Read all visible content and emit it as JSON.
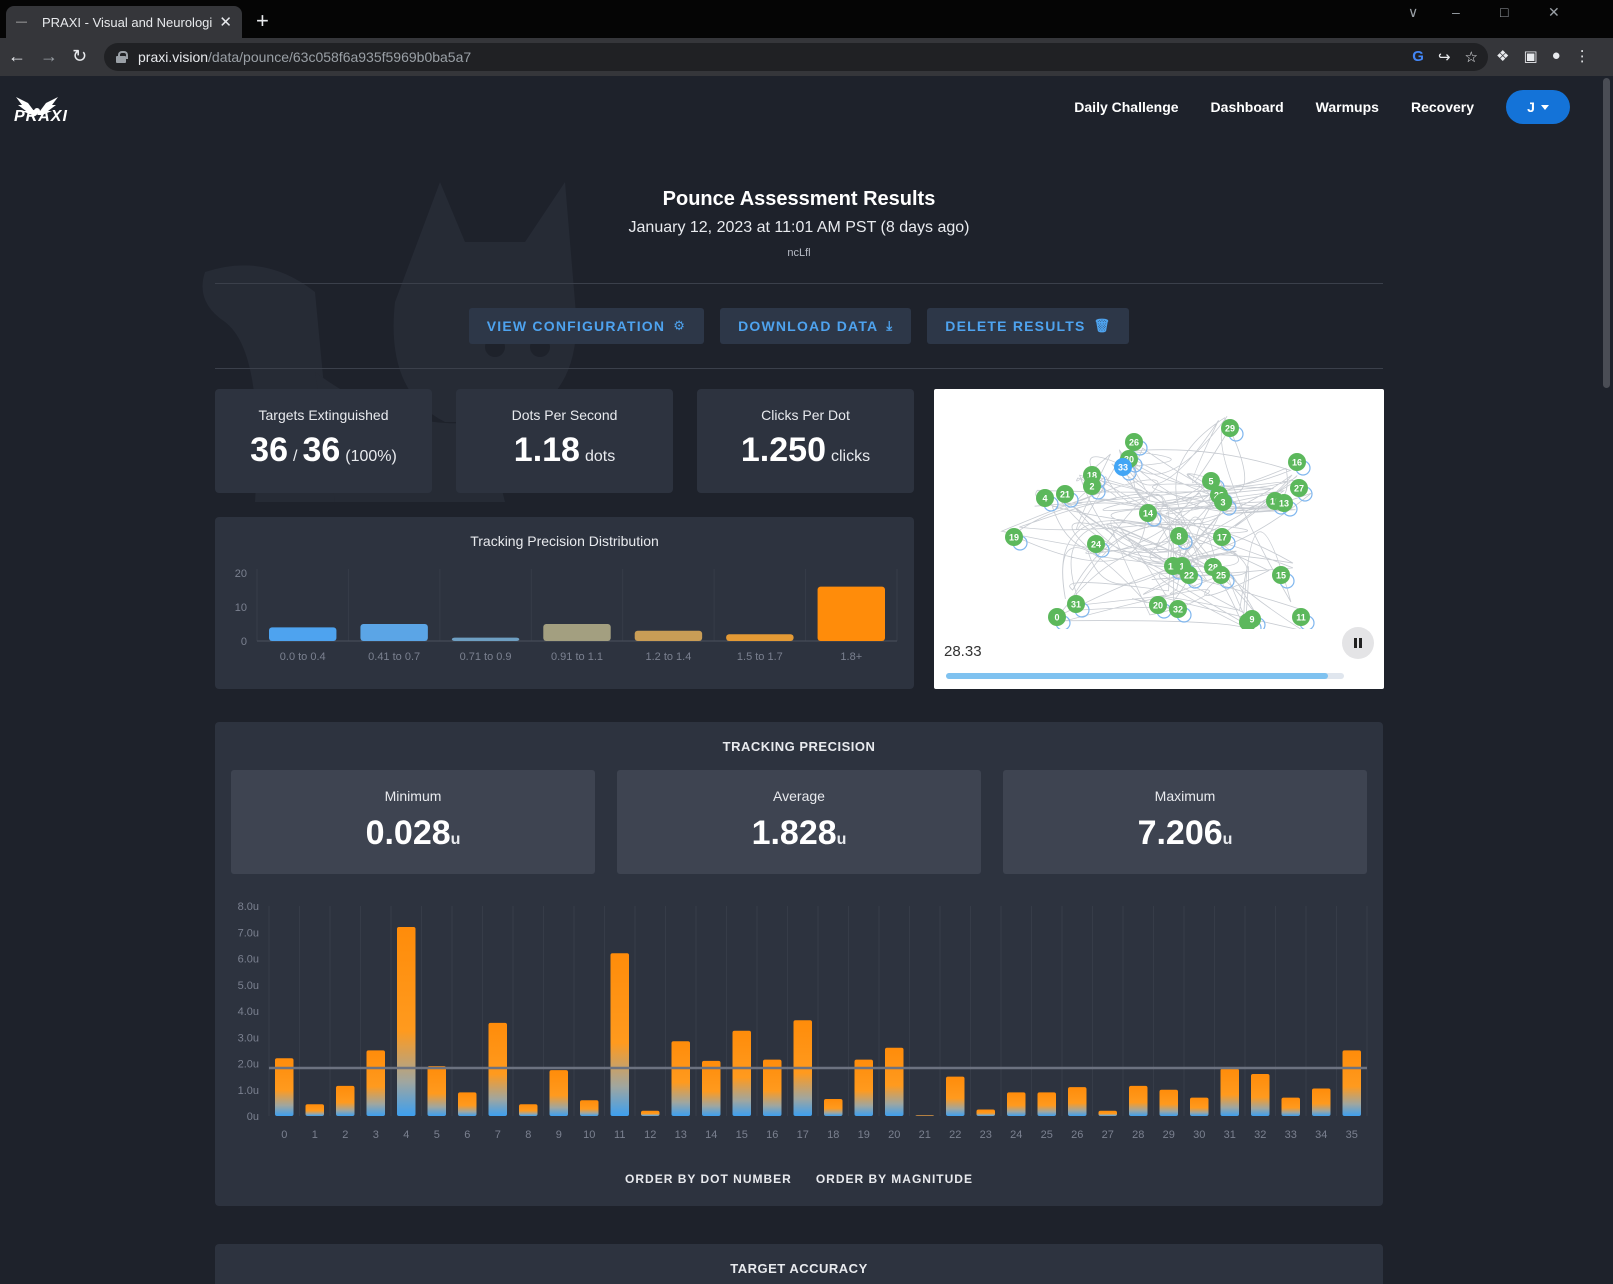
{
  "browser": {
    "tab_title": "PRAXI - Visual and Neurological",
    "url_host": "praxi.vision",
    "url_path": "/data/pounce/63c058f6a935f5969b0ba5a7"
  },
  "nav": {
    "logo_text": "PRAXI",
    "items": [
      "Daily Challenge",
      "Dashboard",
      "Warmups",
      "Recovery"
    ],
    "user_initial": "J"
  },
  "header": {
    "title": "Pounce Assessment Results",
    "date": "January 12, 2023 at 11:01 AM PST (8 days ago)",
    "username": "ncLfl"
  },
  "actions": {
    "view_config": "VIEW CONFIGURATION",
    "download": "DOWNLOAD DATA",
    "delete": "DELETE RESULTS"
  },
  "stats": {
    "targets": {
      "label": "Targets Extinguished",
      "hit": "36",
      "sep": "/",
      "total": "36",
      "pct": "(100%)"
    },
    "dps": {
      "label": "Dots Per Second",
      "value": "1.18",
      "unit": "dots"
    },
    "cpd": {
      "label": "Clicks Per Dot",
      "value": "1.250",
      "unit": "clicks"
    }
  },
  "replay": {
    "time": "28.33",
    "progress": 0.96,
    "dots": [
      {
        "n": "29",
        "x": 296,
        "y": 39,
        "c": "#5cb85c"
      },
      {
        "n": "26",
        "x": 200,
        "y": 53,
        "c": "#5cb85c"
      },
      {
        "n": "16",
        "x": 363,
        "y": 73,
        "c": "#5cb85c"
      },
      {
        "n": "30",
        "x": 195,
        "y": 70,
        "c": "#5cb85c"
      },
      {
        "n": "33",
        "x": 189,
        "y": 78,
        "c": "#42a5f5"
      },
      {
        "n": "18",
        "x": 158,
        "y": 86,
        "c": "#5cb85c"
      },
      {
        "n": "2",
        "x": 158,
        "y": 97,
        "c": "#5cb85c"
      },
      {
        "n": "5",
        "x": 277,
        "y": 92,
        "c": "#5cb85c"
      },
      {
        "n": "27",
        "x": 365,
        "y": 99,
        "c": "#5cb85c"
      },
      {
        "n": "4",
        "x": 111,
        "y": 109,
        "c": "#5cb85c"
      },
      {
        "n": "21",
        "x": 131,
        "y": 105,
        "c": "#5cb85c"
      },
      {
        "n": "23",
        "x": 285,
        "y": 106,
        "c": "#5cb85c"
      },
      {
        "n": "3",
        "x": 289,
        "y": 113,
        "c": "#5cb85c"
      },
      {
        "n": "10",
        "x": 341,
        "y": 112,
        "c": "#5cb85c"
      },
      {
        "n": "13",
        "x": 350,
        "y": 114,
        "c": "#5cb85c"
      },
      {
        "n": "14",
        "x": 214,
        "y": 124,
        "c": "#5cb85c"
      },
      {
        "n": "19",
        "x": 80,
        "y": 148,
        "c": "#5cb85c"
      },
      {
        "n": "8",
        "x": 245,
        "y": 147,
        "c": "#5cb85c"
      },
      {
        "n": "17",
        "x": 288,
        "y": 148,
        "c": "#5cb85c"
      },
      {
        "n": "24",
        "x": 162,
        "y": 155,
        "c": "#5cb85c"
      },
      {
        "n": "12",
        "x": 239,
        "y": 177,
        "c": "#5cb85c"
      },
      {
        "n": "1",
        "x": 248,
        "y": 177,
        "c": "#5cb85c"
      },
      {
        "n": "28",
        "x": 279,
        "y": 178,
        "c": "#5cb85c"
      },
      {
        "n": "22",
        "x": 255,
        "y": 186,
        "c": "#5cb85c"
      },
      {
        "n": "25",
        "x": 287,
        "y": 186,
        "c": "#5cb85c"
      },
      {
        "n": "15",
        "x": 347,
        "y": 186,
        "c": "#5cb85c"
      },
      {
        "n": "31",
        "x": 142,
        "y": 215,
        "c": "#5cb85c"
      },
      {
        "n": "20",
        "x": 224,
        "y": 216,
        "c": "#5cb85c"
      },
      {
        "n": "32",
        "x": 244,
        "y": 220,
        "c": "#5cb85c"
      },
      {
        "n": "0",
        "x": 123,
        "y": 228,
        "c": "#5cb85c"
      },
      {
        "n": "7",
        "x": 314,
        "y": 233,
        "c": "#5cb85c"
      },
      {
        "n": "9",
        "x": 318,
        "y": 230,
        "c": "#5cb85c"
      },
      {
        "n": "11",
        "x": 367,
        "y": 228,
        "c": "#5cb85c"
      }
    ]
  },
  "distribution": {
    "title": "Tracking Precision Distribution",
    "chart_data": {
      "type": "bar",
      "categories": [
        "0.0 to 0.4",
        "0.41 to 0.7",
        "0.71 to 0.9",
        "0.91 to 1.1",
        "1.2 to 1.4",
        "1.5 to 1.7",
        "1.8+"
      ],
      "values": [
        4,
        5,
        1,
        5,
        3,
        2,
        16
      ],
      "colors": [
        "#4ea3ef",
        "#5ba5e6",
        "#6e9fc2",
        "#a39f80",
        "#c99d56",
        "#e49a35",
        "#ff8c0a"
      ],
      "ylim": [
        0,
        20
      ],
      "yticks": [
        "0",
        "10",
        "20"
      ]
    }
  },
  "precision": {
    "title": "TRACKING PRECISION",
    "min": {
      "label": "Minimum",
      "value": "0.028",
      "unit": "u"
    },
    "avg": {
      "label": "Average",
      "value": "1.828",
      "unit": "u"
    },
    "max": {
      "label": "Maximum",
      "value": "7.206",
      "unit": "u"
    },
    "chart_data": {
      "type": "bar",
      "categories": [
        "0",
        "1",
        "2",
        "3",
        "4",
        "5",
        "6",
        "7",
        "8",
        "9",
        "10",
        "11",
        "12",
        "13",
        "14",
        "15",
        "16",
        "17",
        "18",
        "19",
        "20",
        "21",
        "22",
        "23",
        "24",
        "25",
        "26",
        "27",
        "28",
        "29",
        "30",
        "31",
        "32",
        "33",
        "34",
        "35"
      ],
      "values": [
        2.2,
        0.45,
        1.15,
        2.5,
        7.2,
        1.9,
        0.9,
        3.55,
        0.45,
        1.75,
        0.6,
        6.2,
        0.2,
        2.85,
        2.1,
        3.25,
        2.15,
        3.65,
        0.65,
        2.15,
        2.6,
        0.03,
        1.5,
        0.25,
        0.9,
        0.9,
        1.1,
        0.2,
        1.15,
        1.0,
        0.7,
        1.8,
        1.6,
        0.7,
        1.05,
        2.5
      ],
      "average": 1.828,
      "ylim": [
        0,
        8
      ],
      "yticks": [
        "0u",
        "1.0u",
        "2.0u",
        "3.0u",
        "4.0u",
        "5.0u",
        "6.0u",
        "7.0u",
        "8.0u"
      ]
    },
    "order_by_number": "ORDER BY DOT NUMBER",
    "order_by_magnitude": "ORDER BY MAGNITUDE"
  },
  "accuracy": {
    "title": "TARGET ACCURACY"
  }
}
